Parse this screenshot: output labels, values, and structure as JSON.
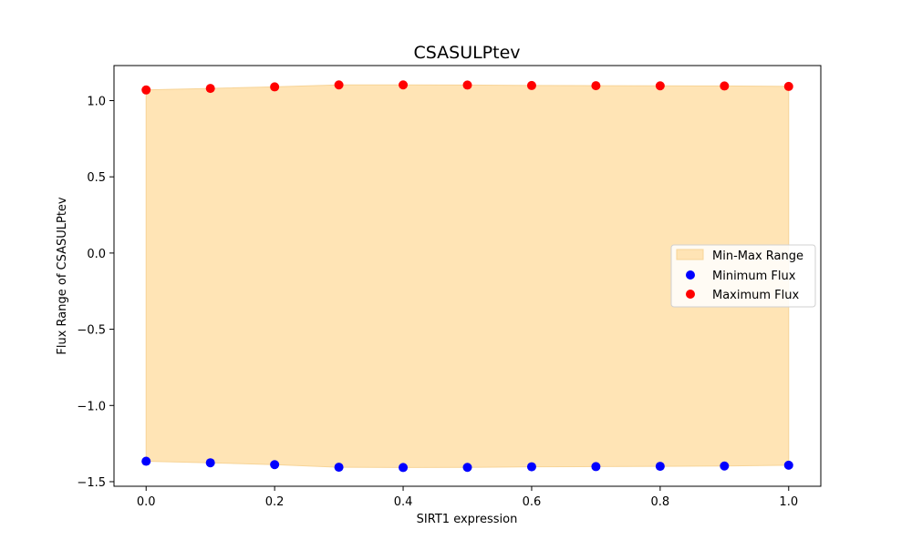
{
  "chart_data": {
    "type": "scatter",
    "title": "CSASULPtev",
    "xlabel": "SIRT1 expression",
    "ylabel": "Flux Range of CSASULPtev",
    "xlim": [
      -0.05,
      1.05
    ],
    "ylim": [
      -1.53,
      1.23
    ],
    "xticks": [
      0.0,
      0.2,
      0.4,
      0.6,
      0.8,
      1.0
    ],
    "xtick_labels": [
      "0.0",
      "0.2",
      "0.4",
      "0.6",
      "0.8",
      "1.0"
    ],
    "yticks": [
      -1.5,
      -1.0,
      -0.5,
      0.0,
      0.5,
      1.0
    ],
    "ytick_labels": [
      "−1.5",
      "−1.0",
      "−0.5",
      "0.0",
      "0.5",
      "1.0"
    ],
    "grid": false,
    "legend_position": "center-right",
    "x": [
      0.0,
      0.1,
      0.2,
      0.3,
      0.4,
      0.5,
      0.6,
      0.7,
      0.8,
      0.9,
      1.0
    ],
    "band": {
      "name": "Min-Max Range",
      "color": "#ffe4b5",
      "edge_color": "#f7d497"
    },
    "series": [
      {
        "name": "Minimum Flux",
        "color": "#0000ff",
        "values": [
          -1.366,
          -1.376,
          -1.388,
          -1.405,
          -1.407,
          -1.406,
          -1.402,
          -1.401,
          -1.399,
          -1.397,
          -1.392
        ]
      },
      {
        "name": "Maximum Flux",
        "color": "#ff0000",
        "values": [
          1.07,
          1.08,
          1.09,
          1.103,
          1.103,
          1.102,
          1.099,
          1.098,
          1.097,
          1.096,
          1.093
        ]
      }
    ]
  }
}
